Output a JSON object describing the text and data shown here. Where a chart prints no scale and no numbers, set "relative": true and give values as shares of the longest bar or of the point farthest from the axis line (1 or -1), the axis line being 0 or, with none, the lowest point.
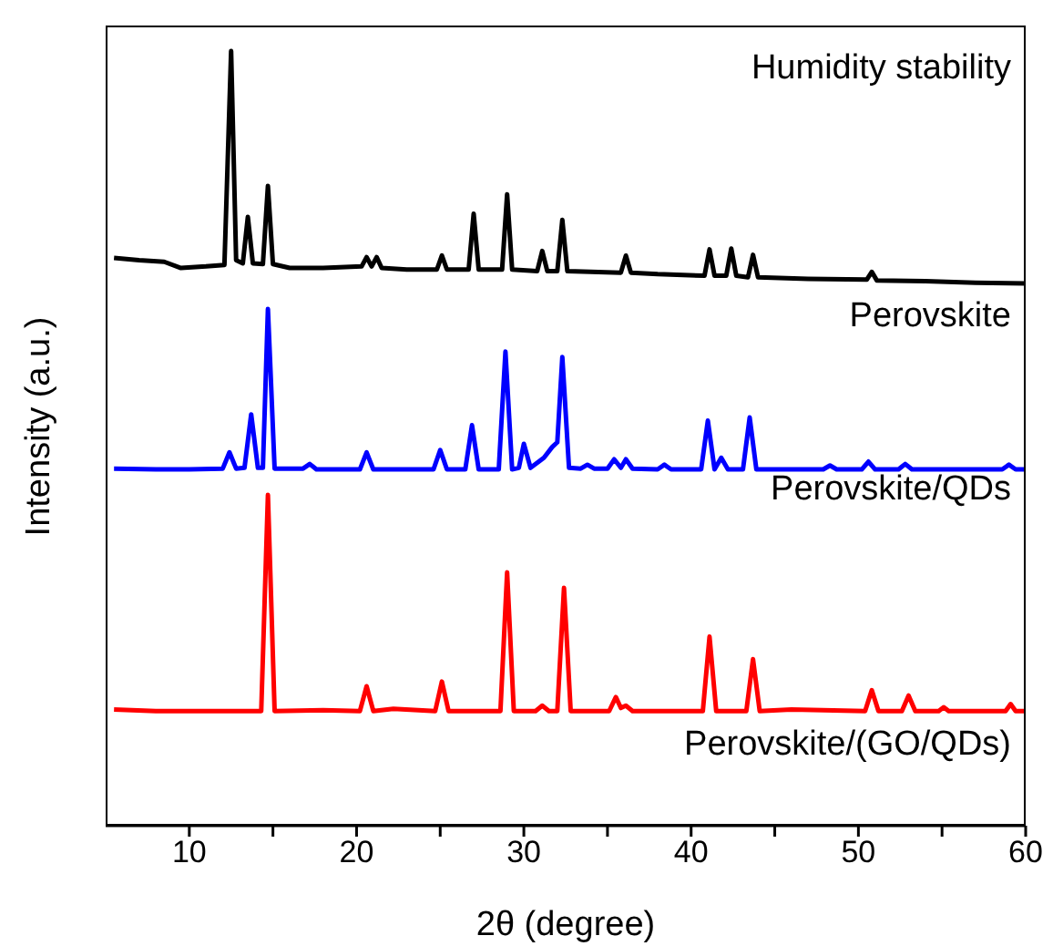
{
  "chart_data": {
    "type": "line",
    "relative": true,
    "xlabel": "2θ (degree)",
    "ylabel": "Intensity (a.u.)",
    "xlim": [
      5,
      60
    ],
    "xticks": [
      10,
      {
        "value": 15,
        "label": null
      },
      20,
      {
        "value": 25,
        "label": null
      },
      30,
      {
        "value": 35,
        "label": null
      },
      40,
      {
        "value": 45,
        "label": null
      },
      50,
      {
        "value": 55,
        "label": null
      },
      60
    ],
    "marker": "none",
    "line_style": "solid",
    "annotations": [
      "Humidity stability",
      "Perovskite",
      "Perovskite/QDs",
      "Perovskite/(GO/QDs)"
    ],
    "series": [
      {
        "color": "#000000",
        "x": [
          5.5,
          7,
          8.5,
          9.5,
          11,
          12.1,
          12.5,
          12.8,
          13.2,
          13.5,
          13.8,
          14.4,
          14.7,
          15.0,
          16,
          18,
          20.3,
          20.6,
          20.9,
          21.2,
          21.5,
          23,
          24.8,
          25.1,
          25.4,
          26.7,
          27.0,
          27.3,
          28.7,
          29.0,
          29.3,
          30.8,
          31.1,
          31.4,
          32.0,
          32.3,
          32.6,
          34,
          35.8,
          36.1,
          36.4,
          38,
          40.8,
          41.1,
          41.4,
          42.1,
          42.4,
          42.7,
          43.4,
          43.7,
          44,
          47,
          50.5,
          50.8,
          51.1,
          54,
          57,
          60
        ],
        "values": [
          0.733,
          0.73,
          0.728,
          0.72,
          0.722,
          0.724,
          1.0,
          0.73,
          0.726,
          0.786,
          0.726,
          0.725,
          0.826,
          0.725,
          0.72,
          0.72,
          0.722,
          0.734,
          0.722,
          0.734,
          0.72,
          0.718,
          0.718,
          0.736,
          0.718,
          0.718,
          0.79,
          0.718,
          0.718,
          0.815,
          0.718,
          0.716,
          0.742,
          0.716,
          0.716,
          0.782,
          0.716,
          0.715,
          0.714,
          0.736,
          0.714,
          0.712,
          0.71,
          0.744,
          0.71,
          0.71,
          0.745,
          0.71,
          0.708,
          0.737,
          0.708,
          0.706,
          0.705,
          0.715,
          0.704,
          0.703,
          0.701,
          0.7
        ]
      },
      {
        "color": "#0000ff",
        "x": [
          5.5,
          8,
          10,
          12.0,
          12.4,
          12.8,
          13.3,
          13.7,
          14.1,
          14.4,
          14.7,
          15.1,
          16.8,
          17.2,
          17.6,
          20.2,
          20.6,
          21.0,
          24.6,
          25.0,
          25.4,
          26.5,
          26.9,
          27.3,
          28.5,
          28.9,
          29.3,
          29.7,
          30.0,
          30.4,
          31.2,
          31.7,
          32.0,
          32.3,
          32.7,
          33.4,
          33.8,
          34.2,
          35.0,
          35.4,
          35.8,
          36.1,
          36.5,
          38.0,
          38.4,
          38.8,
          40.6,
          41.0,
          41.4,
          41.8,
          42.2,
          43.1,
          43.5,
          43.9,
          47.9,
          48.3,
          48.7,
          50.2,
          50.6,
          51.0,
          52.4,
          52.8,
          53.2,
          58.6,
          59.0,
          59.4,
          60
        ],
        "values": [
          0.461,
          0.46,
          0.46,
          0.461,
          0.482,
          0.461,
          0.462,
          0.531,
          0.462,
          0.462,
          0.667,
          0.461,
          0.461,
          0.467,
          0.46,
          0.46,
          0.482,
          0.46,
          0.46,
          0.485,
          0.46,
          0.46,
          0.517,
          0.46,
          0.46,
          0.612,
          0.46,
          0.462,
          0.493,
          0.462,
          0.475,
          0.489,
          0.495,
          0.605,
          0.462,
          0.461,
          0.466,
          0.461,
          0.461,
          0.473,
          0.462,
          0.473,
          0.461,
          0.46,
          0.466,
          0.46,
          0.46,
          0.523,
          0.46,
          0.475,
          0.46,
          0.46,
          0.527,
          0.46,
          0.46,
          0.465,
          0.46,
          0.46,
          0.47,
          0.46,
          0.46,
          0.467,
          0.46,
          0.46,
          0.466,
          0.46,
          0.46
        ]
      },
      {
        "color": "#ff0000",
        "x": [
          5.5,
          8,
          11,
          14.3,
          14.7,
          15.1,
          18,
          20.2,
          20.6,
          21.0,
          22.2,
          24.7,
          25.1,
          25.5,
          28.6,
          29.0,
          29.4,
          30.7,
          31.1,
          31.5,
          32.0,
          32.4,
          32.8,
          35.1,
          35.5,
          35.8,
          36.1,
          36.5,
          40.7,
          41.1,
          41.5,
          43.3,
          43.7,
          44.1,
          46,
          50.4,
          50.8,
          51.2,
          52.6,
          53.0,
          53.4,
          54.8,
          55.1,
          55.4,
          58.8,
          59.1,
          59.4,
          60
        ],
        "values": [
          0.15,
          0.148,
          0.148,
          0.148,
          0.427,
          0.148,
          0.149,
          0.148,
          0.18,
          0.148,
          0.151,
          0.148,
          0.186,
          0.148,
          0.148,
          0.327,
          0.148,
          0.148,
          0.155,
          0.148,
          0.148,
          0.307,
          0.148,
          0.148,
          0.166,
          0.152,
          0.155,
          0.148,
          0.148,
          0.244,
          0.148,
          0.148,
          0.215,
          0.148,
          0.15,
          0.148,
          0.175,
          0.148,
          0.148,
          0.168,
          0.148,
          0.148,
          0.153,
          0.148,
          0.148,
          0.157,
          0.148,
          0.148
        ]
      }
    ]
  }
}
